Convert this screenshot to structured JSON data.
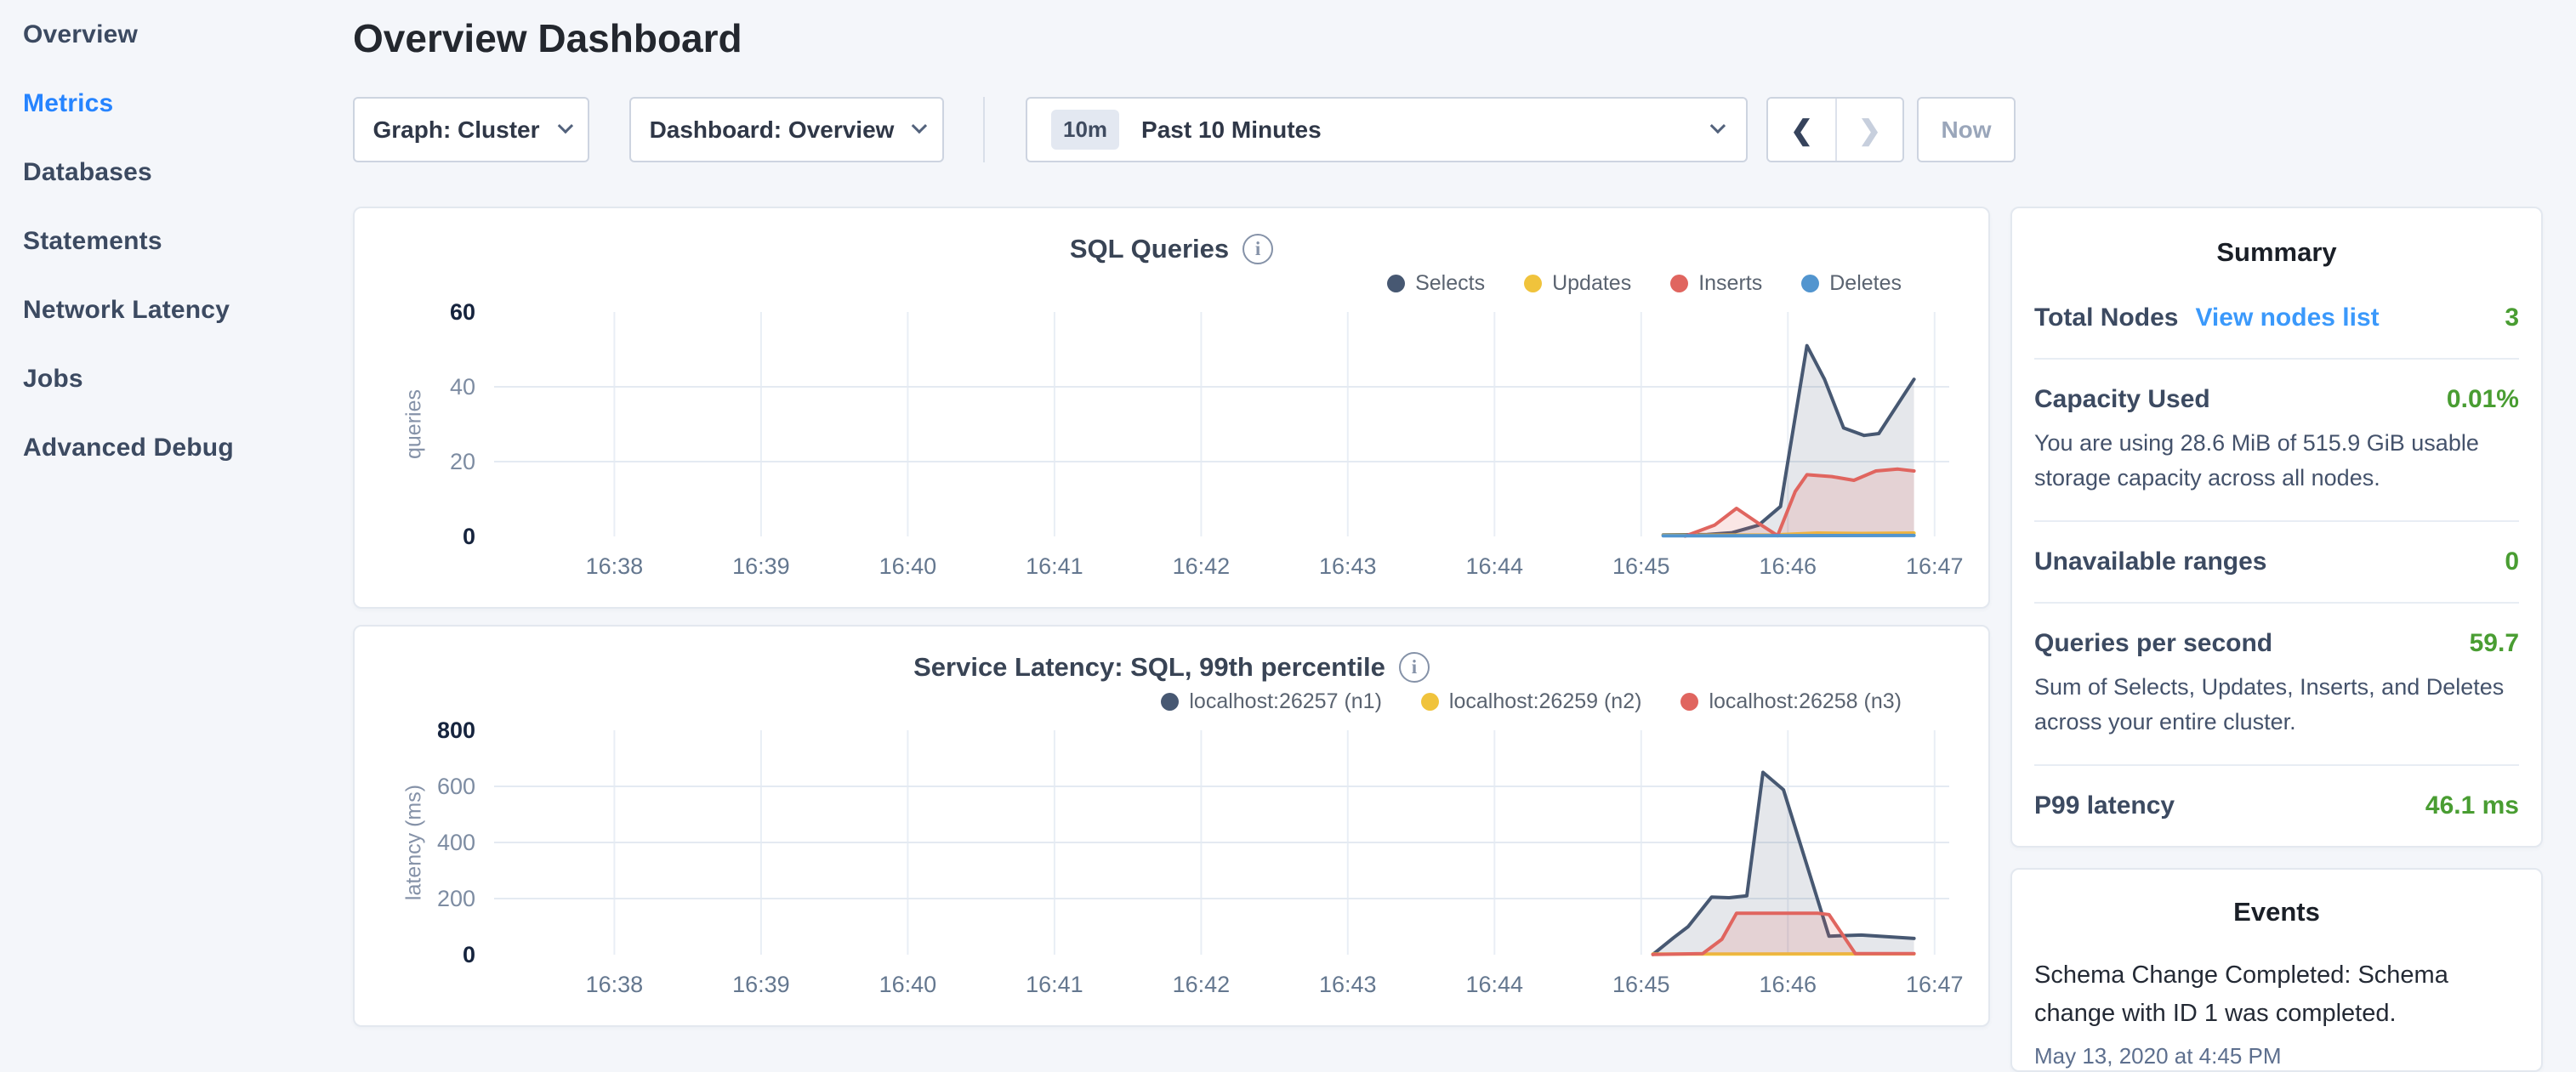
{
  "sidebar": {
    "items": [
      {
        "label": "Overview",
        "active": false
      },
      {
        "label": "Metrics",
        "active": true
      },
      {
        "label": "Databases",
        "active": false
      },
      {
        "label": "Statements",
        "active": false
      },
      {
        "label": "Network Latency",
        "active": false
      },
      {
        "label": "Jobs",
        "active": false
      },
      {
        "label": "Advanced Debug",
        "active": false
      }
    ]
  },
  "header": {
    "title": "Overview Dashboard"
  },
  "toolbar": {
    "graph_dropdown_label": "Graph: Cluster",
    "dashboard_dropdown_label": "Dashboard: Overview",
    "time_window_badge": "10m",
    "time_window_label": "Past 10 Minutes",
    "prev_arrow": "❮",
    "next_arrow": "❯",
    "prev_enabled": true,
    "next_enabled": false,
    "now_button_label": "Now"
  },
  "summary": {
    "title": "Summary",
    "total_nodes_label": "Total Nodes",
    "view_nodes_link": "View nodes list",
    "total_nodes_value": "3",
    "capacity_label": "Capacity Used",
    "capacity_value": "0.01%",
    "capacity_desc": "You are using 28.6 MiB of 515.9 GiB usable storage capacity across all nodes.",
    "unavailable_label": "Unavailable ranges",
    "unavailable_value": "0",
    "qps_label": "Queries per second",
    "qps_value": "59.7",
    "qps_desc": "Sum of Selects, Updates, Inserts, and Deletes across your entire cluster.",
    "p99_label": "P99 latency",
    "p99_value": "46.1 ms"
  },
  "events": {
    "title": "Events",
    "items": [
      {
        "text": "Schema Change Completed: Schema change with ID 1 was completed.",
        "timestamp": "May 13, 2020 at 4:45 PM"
      }
    ]
  },
  "colors": {
    "status_green": "#499d32",
    "link_blue": "#3b99fb",
    "active_nav_blue": "#2684ff",
    "series_navy": "#475872",
    "series_yellow": "#f0c33c",
    "series_red": "#e0655f",
    "series_blue": "#5295cf"
  },
  "chart_data": [
    {
      "type": "area",
      "title": "SQL Queries",
      "ylabel": "queries",
      "xlabel": "",
      "x_note": "x values are minutes after 16:38",
      "x_tick_labels": [
        "16:38",
        "16:39",
        "16:40",
        "16:41",
        "16:42",
        "16:43",
        "16:44",
        "16:45",
        "16:46",
        "16:47"
      ],
      "xlim": [
        -0.82,
        9.1
      ],
      "ylim": [
        0,
        60
      ],
      "y_ticks": [
        0,
        20,
        40,
        60
      ],
      "grid": true,
      "legend_position": "top-right",
      "series": [
        {
          "name": "Selects",
          "color": "#475872",
          "fill": "rgba(71,88,114,0.14)",
          "points": [
            [
              7.15,
              0.4
            ],
            [
              7.45,
              0.5
            ],
            [
              7.62,
              1
            ],
            [
              7.8,
              3
            ],
            [
              7.95,
              8
            ],
            [
              8.13,
              51
            ],
            [
              8.25,
              42
            ],
            [
              8.38,
              29
            ],
            [
              8.52,
              27
            ],
            [
              8.62,
              27.5
            ],
            [
              8.86,
              42
            ]
          ]
        },
        {
          "name": "Updates",
          "color": "#f0c33c",
          "fill": "rgba(240,195,60,0.10)",
          "points": [
            [
              7.15,
              0.3
            ],
            [
              7.9,
              0.4
            ],
            [
              8.2,
              0.9
            ],
            [
              8.5,
              0.8
            ],
            [
              8.86,
              0.9
            ]
          ]
        },
        {
          "name": "Inserts",
          "color": "#e0655f",
          "fill": "rgba(224,101,95,0.16)",
          "points": [
            [
              7.3,
              0.1
            ],
            [
              7.5,
              3
            ],
            [
              7.65,
              7.5
            ],
            [
              7.8,
              3.5
            ],
            [
              7.93,
              0.2
            ],
            [
              8.05,
              12
            ],
            [
              8.13,
              16.5
            ],
            [
              8.3,
              16
            ],
            [
              8.45,
              15
            ],
            [
              8.6,
              17.5
            ],
            [
              8.75,
              18
            ],
            [
              8.86,
              17.5
            ]
          ]
        },
        {
          "name": "Deletes",
          "color": "#5295cf",
          "fill": "rgba(82,149,207,0.10)",
          "points": [
            [
              7.15,
              0.15
            ],
            [
              8.86,
              0.25
            ]
          ]
        }
      ]
    },
    {
      "type": "area",
      "title": "Service Latency: SQL, 99th percentile",
      "ylabel": "latency (ms)",
      "xlabel": "",
      "x_note": "x values are minutes after 16:38",
      "x_tick_labels": [
        "16:38",
        "16:39",
        "16:40",
        "16:41",
        "16:42",
        "16:43",
        "16:44",
        "16:45",
        "16:46",
        "16:47"
      ],
      "xlim": [
        -0.82,
        9.1
      ],
      "ylim": [
        0,
        800
      ],
      "y_ticks": [
        0,
        200,
        400,
        600,
        800
      ],
      "grid": true,
      "legend_position": "top-right",
      "series": [
        {
          "name": "localhost:26257 (n1)",
          "color": "#475872",
          "fill": "rgba(71,88,114,0.14)",
          "points": [
            [
              7.08,
              1
            ],
            [
              7.22,
              60
            ],
            [
              7.32,
              100
            ],
            [
              7.48,
              205
            ],
            [
              7.6,
              203
            ],
            [
              7.72,
              210
            ],
            [
              7.83,
              650
            ],
            [
              7.97,
              588
            ],
            [
              8.28,
              66
            ],
            [
              8.5,
              70
            ],
            [
              8.86,
              58
            ]
          ]
        },
        {
          "name": "localhost:26259 (n2)",
          "color": "#f0c33c",
          "fill": "rgba(240,195,60,0.10)",
          "points": [
            [
              7.08,
              2
            ],
            [
              8.86,
              3
            ]
          ]
        },
        {
          "name": "localhost:26258 (n3)",
          "color": "#e0655f",
          "fill": "rgba(224,101,95,0.16)",
          "points": [
            [
              7.08,
              1
            ],
            [
              7.42,
              4
            ],
            [
              7.55,
              55
            ],
            [
              7.65,
              148
            ],
            [
              8.2,
              148
            ],
            [
              8.28,
              143
            ],
            [
              8.46,
              4
            ],
            [
              8.86,
              4
            ]
          ]
        }
      ]
    }
  ]
}
